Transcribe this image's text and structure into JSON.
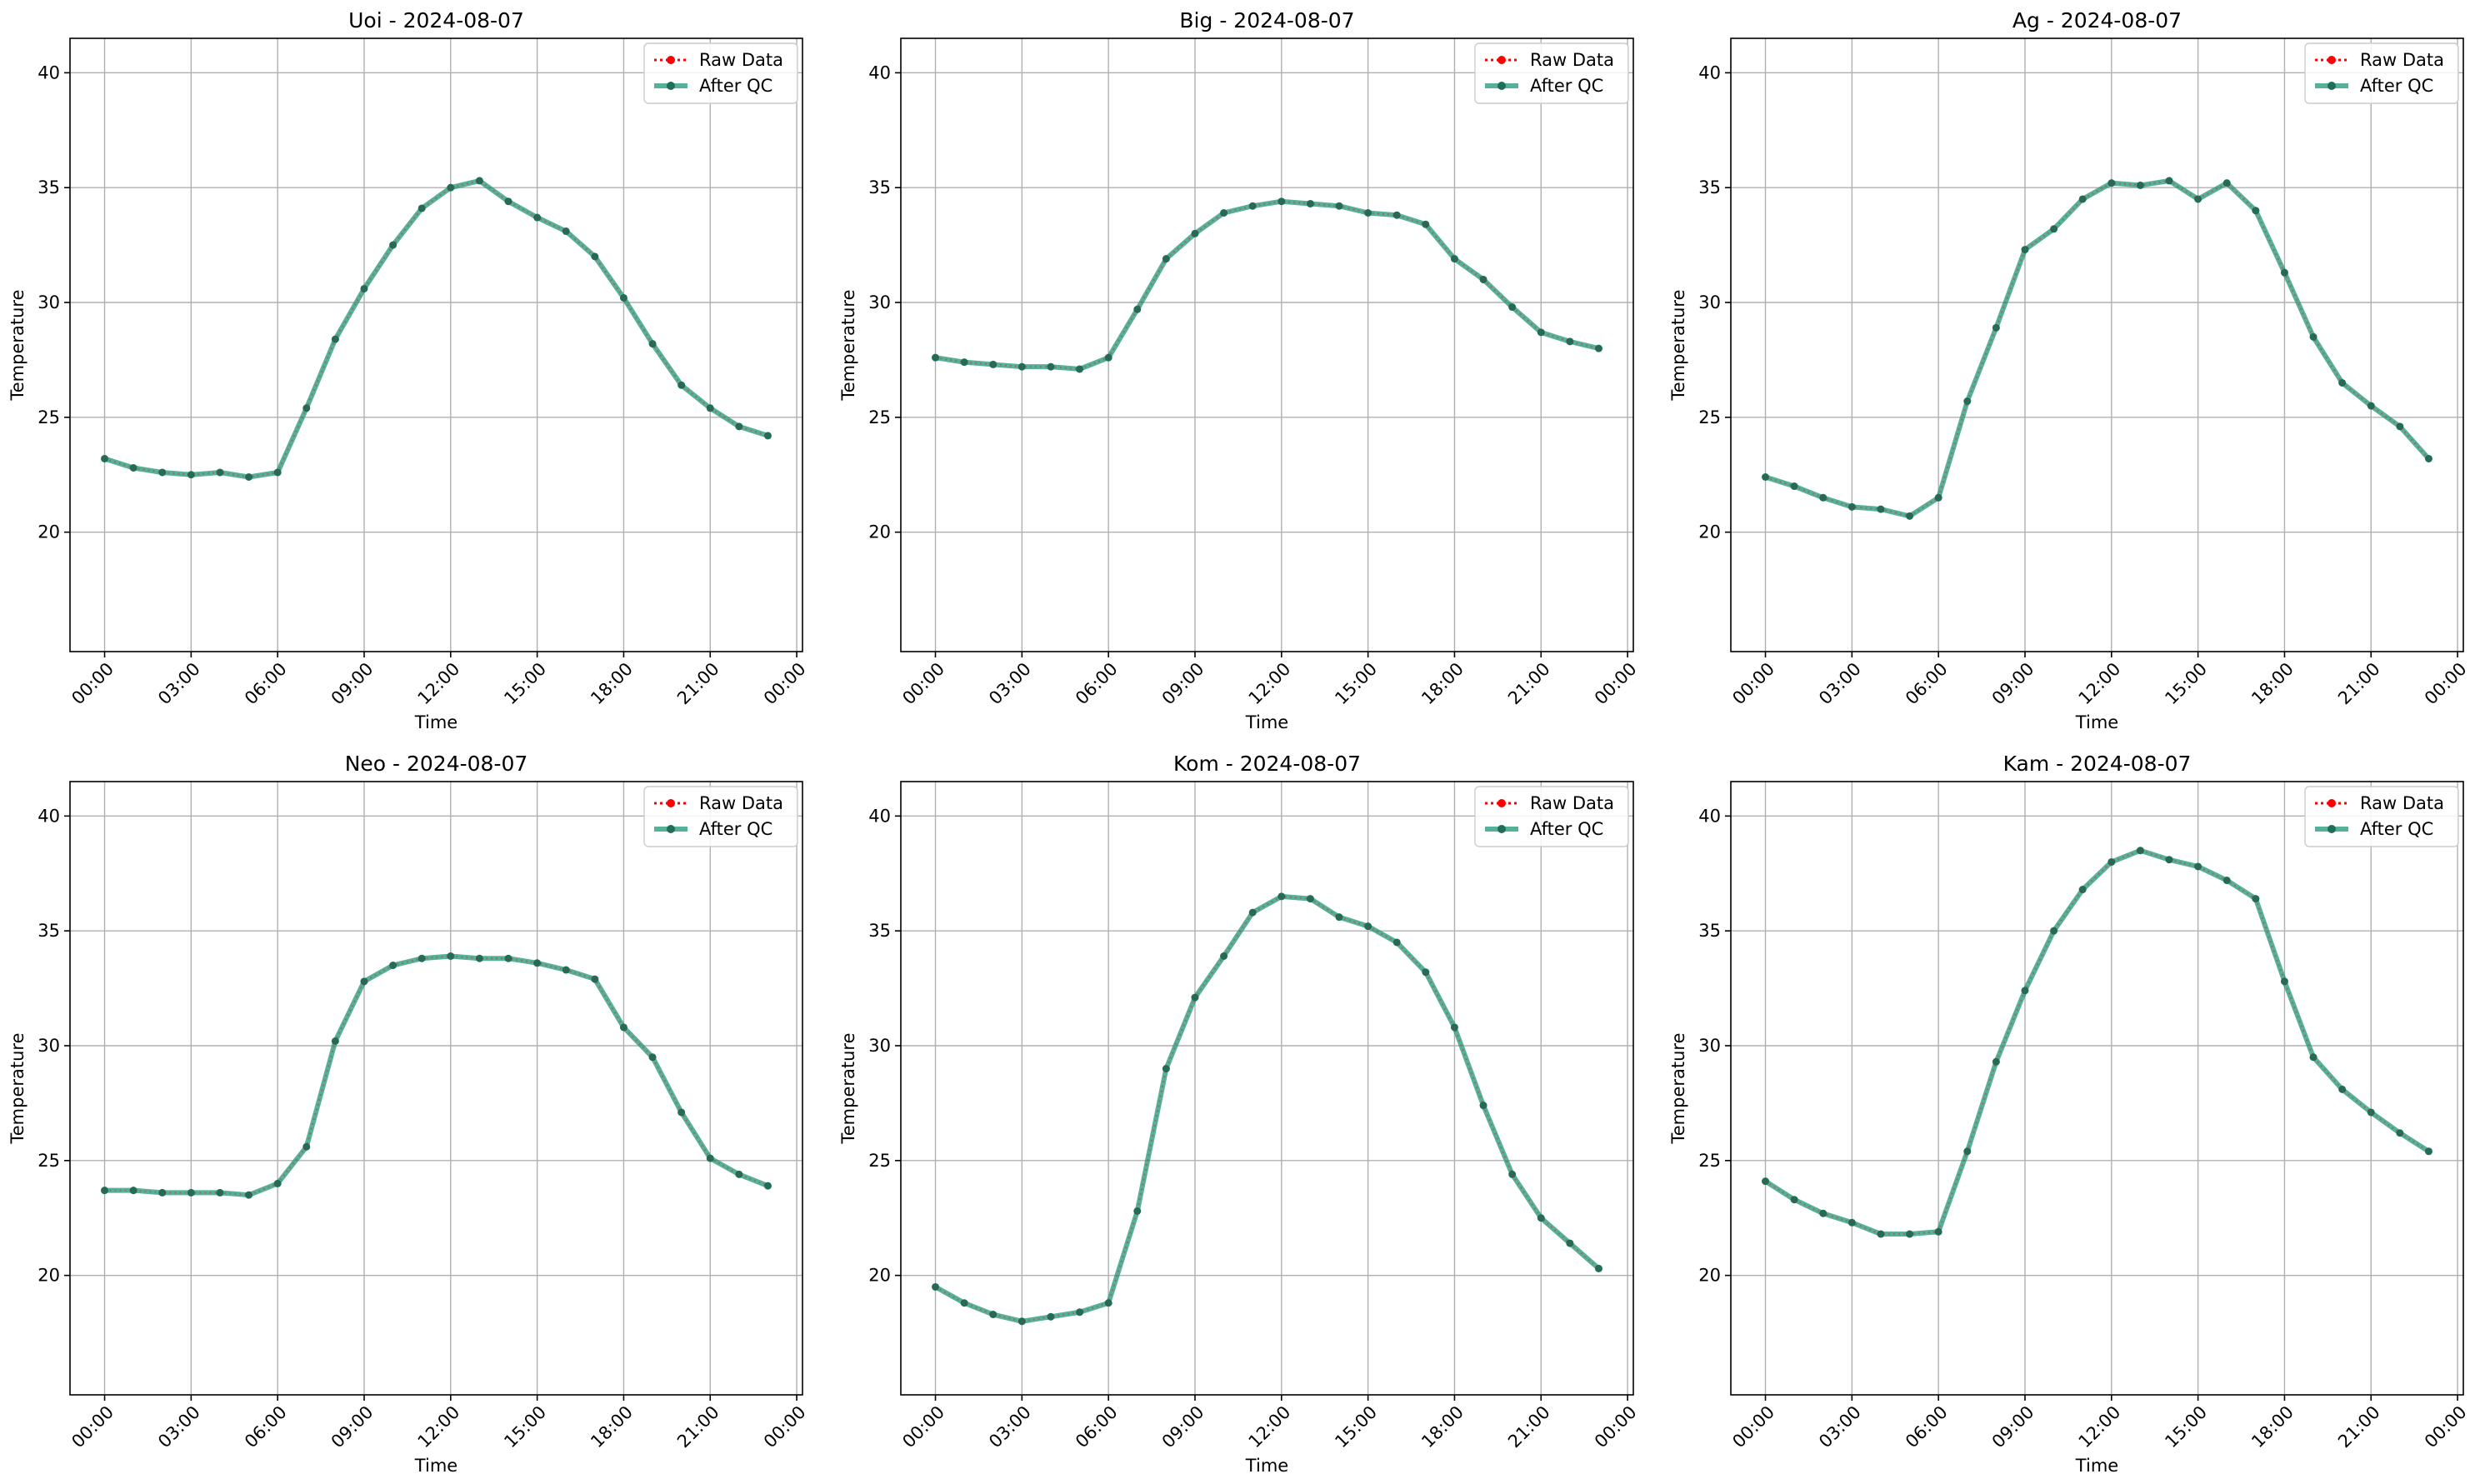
{
  "colors": {
    "raw": "#ff0000",
    "qc": "#2a9d7f",
    "qc_marker": "#1f6e5a",
    "grid": "#b0b0b0",
    "axis": "#000000",
    "legend_border": "#cccccc"
  },
  "legend_placement": "top-right",
  "chart_data": [
    {
      "type": "line",
      "title": "Uoi - 2024-08-07",
      "xlabel": "Time",
      "ylabel": "Temperature",
      "ylim": [
        14.8,
        41.5
      ],
      "xlim": [
        "2024-08-06 22:48",
        "2024-08-08 00:12"
      ],
      "x_ticks": [
        "00:00",
        "03:00",
        "06:00",
        "09:00",
        "12:00",
        "15:00",
        "18:00",
        "21:00",
        "00:00"
      ],
      "y_ticks": [
        20,
        25,
        30,
        35,
        40
      ],
      "grid": true,
      "legend": [
        "Raw Data",
        "After QC"
      ],
      "x": [
        "00:00",
        "01:00",
        "02:00",
        "03:00",
        "04:00",
        "05:00",
        "06:00",
        "07:00",
        "08:00",
        "09:00",
        "10:00",
        "11:00",
        "12:00",
        "13:00",
        "14:00",
        "15:00",
        "16:00",
        "17:00",
        "18:00",
        "19:00",
        "20:00",
        "21:00",
        "22:00",
        "23:00"
      ],
      "series": [
        {
          "name": "Raw Data",
          "values": [
            23.2,
            22.8,
            22.6,
            22.5,
            22.6,
            22.4,
            22.6,
            25.4,
            28.4,
            30.6,
            32.5,
            34.1,
            35.0,
            35.3,
            34.4,
            33.7,
            33.1,
            32.0,
            30.2,
            28.2,
            26.4,
            25.4,
            24.6,
            24.2
          ]
        },
        {
          "name": "After QC",
          "values": [
            23.2,
            22.8,
            22.6,
            22.5,
            22.6,
            22.4,
            22.6,
            25.4,
            28.4,
            30.6,
            32.5,
            34.1,
            35.0,
            35.3,
            34.4,
            33.7,
            33.1,
            32.0,
            30.2,
            28.2,
            26.4,
            25.4,
            24.6,
            24.2
          ]
        }
      ]
    },
    {
      "type": "line",
      "title": "Big - 2024-08-07",
      "xlabel": "Time",
      "ylabel": "Temperature",
      "ylim": [
        14.8,
        41.5
      ],
      "xlim": [
        "2024-08-06 22:48",
        "2024-08-08 00:12"
      ],
      "x_ticks": [
        "00:00",
        "03:00",
        "06:00",
        "09:00",
        "12:00",
        "15:00",
        "18:00",
        "21:00",
        "00:00"
      ],
      "y_ticks": [
        20,
        25,
        30,
        35,
        40
      ],
      "grid": true,
      "legend": [
        "Raw Data",
        "After QC"
      ],
      "x": [
        "00:00",
        "01:00",
        "02:00",
        "03:00",
        "04:00",
        "05:00",
        "06:00",
        "07:00",
        "08:00",
        "09:00",
        "10:00",
        "11:00",
        "12:00",
        "13:00",
        "14:00",
        "15:00",
        "16:00",
        "17:00",
        "18:00",
        "19:00",
        "20:00",
        "21:00",
        "22:00",
        "23:00"
      ],
      "series": [
        {
          "name": "Raw Data",
          "values": [
            27.6,
            27.4,
            27.3,
            27.2,
            27.2,
            27.1,
            27.6,
            29.7,
            31.9,
            33.0,
            33.9,
            34.2,
            34.4,
            34.3,
            34.2,
            33.9,
            33.8,
            33.4,
            31.9,
            31.0,
            29.8,
            28.7,
            28.3,
            28.0
          ]
        },
        {
          "name": "After QC",
          "values": [
            27.6,
            27.4,
            27.3,
            27.2,
            27.2,
            27.1,
            27.6,
            29.7,
            31.9,
            33.0,
            33.9,
            34.2,
            34.4,
            34.3,
            34.2,
            33.9,
            33.8,
            33.4,
            31.9,
            31.0,
            29.8,
            28.7,
            28.3,
            28.0
          ]
        }
      ]
    },
    {
      "type": "line",
      "title": "Ag - 2024-08-07",
      "xlabel": "Time",
      "ylabel": "Temperature",
      "ylim": [
        14.8,
        41.5
      ],
      "xlim": [
        "2024-08-06 22:48",
        "2024-08-08 00:12"
      ],
      "x_ticks": [
        "00:00",
        "03:00",
        "06:00",
        "09:00",
        "12:00",
        "15:00",
        "18:00",
        "21:00",
        "00:00"
      ],
      "y_ticks": [
        20,
        25,
        30,
        35,
        40
      ],
      "grid": true,
      "legend": [
        "Raw Data",
        "After QC"
      ],
      "x": [
        "00:00",
        "01:00",
        "02:00",
        "03:00",
        "04:00",
        "05:00",
        "06:00",
        "07:00",
        "08:00",
        "09:00",
        "10:00",
        "11:00",
        "12:00",
        "13:00",
        "14:00",
        "15:00",
        "16:00",
        "17:00",
        "18:00",
        "19:00",
        "20:00",
        "21:00",
        "22:00",
        "23:00"
      ],
      "series": [
        {
          "name": "Raw Data",
          "values": [
            22.4,
            22.0,
            21.5,
            21.1,
            21.0,
            20.7,
            21.5,
            25.7,
            28.9,
            32.3,
            33.2,
            34.5,
            35.2,
            35.1,
            35.3,
            34.5,
            35.2,
            34.0,
            31.3,
            28.5,
            26.5,
            25.5,
            24.6,
            23.2
          ]
        },
        {
          "name": "After QC",
          "values": [
            22.4,
            22.0,
            21.5,
            21.1,
            21.0,
            20.7,
            21.5,
            25.7,
            28.9,
            32.3,
            33.2,
            34.5,
            35.2,
            35.1,
            35.3,
            34.5,
            35.2,
            34.0,
            31.3,
            28.5,
            26.5,
            25.5,
            24.6,
            23.2
          ]
        }
      ]
    },
    {
      "type": "line",
      "title": "Neo - 2024-08-07",
      "xlabel": "Time",
      "ylabel": "Temperature",
      "ylim": [
        14.8,
        41.5
      ],
      "xlim": [
        "2024-08-06 22:48",
        "2024-08-08 00:12"
      ],
      "x_ticks": [
        "00:00",
        "03:00",
        "06:00",
        "09:00",
        "12:00",
        "15:00",
        "18:00",
        "21:00",
        "00:00"
      ],
      "y_ticks": [
        20,
        25,
        30,
        35,
        40
      ],
      "grid": true,
      "legend": [
        "Raw Data",
        "After QC"
      ],
      "x": [
        "00:00",
        "01:00",
        "02:00",
        "03:00",
        "04:00",
        "05:00",
        "06:00",
        "07:00",
        "08:00",
        "09:00",
        "10:00",
        "11:00",
        "12:00",
        "13:00",
        "14:00",
        "15:00",
        "16:00",
        "17:00",
        "18:00",
        "19:00",
        "20:00",
        "21:00",
        "22:00",
        "23:00"
      ],
      "series": [
        {
          "name": "Raw Data",
          "values": [
            23.7,
            23.7,
            23.6,
            23.6,
            23.6,
            23.5,
            24.0,
            25.6,
            30.2,
            32.8,
            33.5,
            33.8,
            33.9,
            33.8,
            33.8,
            33.6,
            33.3,
            32.9,
            30.8,
            29.5,
            27.1,
            25.1,
            24.4,
            23.9
          ]
        },
        {
          "name": "After QC",
          "values": [
            23.7,
            23.7,
            23.6,
            23.6,
            23.6,
            23.5,
            24.0,
            25.6,
            30.2,
            32.8,
            33.5,
            33.8,
            33.9,
            33.8,
            33.8,
            33.6,
            33.3,
            32.9,
            30.8,
            29.5,
            27.1,
            25.1,
            24.4,
            23.9
          ]
        }
      ]
    },
    {
      "type": "line",
      "title": "Kom - 2024-08-07",
      "xlabel": "Time",
      "ylabel": "Temperature",
      "ylim": [
        14.8,
        41.5
      ],
      "xlim": [
        "2024-08-06 22:48",
        "2024-08-08 00:12"
      ],
      "x_ticks": [
        "00:00",
        "03:00",
        "06:00",
        "09:00",
        "12:00",
        "15:00",
        "18:00",
        "21:00",
        "00:00"
      ],
      "y_ticks": [
        20,
        25,
        30,
        35,
        40
      ],
      "grid": true,
      "legend": [
        "Raw Data",
        "After QC"
      ],
      "x": [
        "00:00",
        "01:00",
        "02:00",
        "03:00",
        "04:00",
        "05:00",
        "06:00",
        "07:00",
        "08:00",
        "09:00",
        "10:00",
        "11:00",
        "12:00",
        "13:00",
        "14:00",
        "15:00",
        "16:00",
        "17:00",
        "18:00",
        "19:00",
        "20:00",
        "21:00",
        "22:00",
        "23:00"
      ],
      "series": [
        {
          "name": "Raw Data",
          "values": [
            19.5,
            18.8,
            18.3,
            18.0,
            18.2,
            18.4,
            18.8,
            22.8,
            29.0,
            32.1,
            33.9,
            35.8,
            36.5,
            36.4,
            35.6,
            35.2,
            34.5,
            33.2,
            30.8,
            27.4,
            24.4,
            22.5,
            21.4,
            20.3
          ]
        },
        {
          "name": "After QC",
          "values": [
            19.5,
            18.8,
            18.3,
            18.0,
            18.2,
            18.4,
            18.8,
            22.8,
            29.0,
            32.1,
            33.9,
            35.8,
            36.5,
            36.4,
            35.6,
            35.2,
            34.5,
            33.2,
            30.8,
            27.4,
            24.4,
            22.5,
            21.4,
            20.3
          ]
        }
      ]
    },
    {
      "type": "line",
      "title": "Kam - 2024-08-07",
      "xlabel": "Time",
      "ylabel": "Temperature",
      "ylim": [
        14.8,
        41.5
      ],
      "xlim": [
        "2024-08-06 22:48",
        "2024-08-08 00:12"
      ],
      "x_ticks": [
        "00:00",
        "03:00",
        "06:00",
        "09:00",
        "12:00",
        "15:00",
        "18:00",
        "21:00",
        "00:00"
      ],
      "y_ticks": [
        20,
        25,
        30,
        35,
        40
      ],
      "grid": true,
      "legend": [
        "Raw Data",
        "After QC"
      ],
      "x": [
        "00:00",
        "01:00",
        "02:00",
        "03:00",
        "04:00",
        "05:00",
        "06:00",
        "07:00",
        "08:00",
        "09:00",
        "10:00",
        "11:00",
        "12:00",
        "13:00",
        "14:00",
        "15:00",
        "16:00",
        "17:00",
        "18:00",
        "19:00",
        "20:00",
        "21:00",
        "22:00",
        "23:00"
      ],
      "series": [
        {
          "name": "Raw Data",
          "values": [
            24.1,
            23.3,
            22.7,
            22.3,
            21.8,
            21.8,
            21.9,
            25.4,
            29.3,
            32.4,
            35.0,
            36.8,
            38.0,
            38.5,
            38.1,
            37.8,
            37.2,
            36.4,
            32.8,
            29.5,
            28.1,
            27.1,
            26.2,
            25.4
          ]
        },
        {
          "name": "After QC",
          "values": [
            24.1,
            23.3,
            22.7,
            22.3,
            21.8,
            21.8,
            21.9,
            25.4,
            29.3,
            32.4,
            35.0,
            36.8,
            38.0,
            38.5,
            38.1,
            37.8,
            37.2,
            36.4,
            32.8,
            29.5,
            28.1,
            27.1,
            26.2,
            25.4
          ]
        }
      ]
    }
  ]
}
